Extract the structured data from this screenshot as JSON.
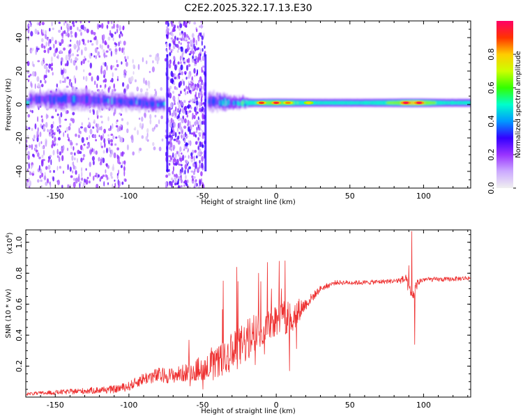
{
  "title": "C2E2.2025.322.17.13.E30",
  "colors": {
    "snr_line": "#ee3030",
    "axis": "#000000",
    "background": "#ffffff"
  },
  "chart_data": [
    {
      "type": "heatmap",
      "name": "spectrogram",
      "xlabel": "Height of straight line (km)",
      "ylabel": "Frequency (Hz)",
      "xlim": [
        -170,
        132
      ],
      "ylim": [
        -50,
        50
      ],
      "x_ticks": [
        -150,
        -100,
        -50,
        0,
        50,
        100
      ],
      "y_ticks": [
        -40,
        -20,
        0,
        20,
        40
      ],
      "colorbar": {
        "label": "Normalized spectral amplitude",
        "range": [
          0,
          1
        ],
        "ticks": [
          "0.0",
          "0.2",
          "0.4",
          "0.6",
          "0.8"
        ],
        "tick_values": [
          0,
          0.2,
          0.4,
          0.6,
          0.8
        ],
        "colormap": [
          "#f0f0f0",
          "#ccaaff",
          "#9933ff",
          "#3300ff",
          "#0099ff",
          "#00ffcc",
          "#33ff00",
          "#ccff00",
          "#ffcc00",
          "#ff3300",
          "#ff0066"
        ]
      },
      "scatter_segments": [
        {
          "x_range": [
            -170,
            -102
          ],
          "f_spread": 50,
          "density": "high",
          "amplitude": 0.15
        },
        {
          "x_range": [
            -102,
            -77
          ],
          "f_spread": 30,
          "density": "low",
          "amplitude": 0.08
        },
        {
          "x_range": [
            -75,
            -48
          ],
          "f_spread": 50,
          "density": "very-high",
          "amplitude": 0.18
        }
      ],
      "band": [
        {
          "x": -168,
          "center": 3,
          "halfwidth": 5,
          "peak": 0.35
        },
        {
          "x": -150,
          "center": 3,
          "halfwidth": 6,
          "peak": 0.4
        },
        {
          "x": -130,
          "center": 3,
          "halfwidth": 6,
          "peak": 0.38
        },
        {
          "x": -110,
          "center": 2,
          "halfwidth": 5,
          "peak": 0.4
        },
        {
          "x": -90,
          "center": 1,
          "halfwidth": 5,
          "peak": 0.42
        },
        {
          "x": -78,
          "center": 0,
          "halfwidth": 4,
          "peak": 0.45
        },
        {
          "x": -46,
          "center": 2,
          "halfwidth": 6,
          "peak": 0.4
        },
        {
          "x": -30,
          "center": 1,
          "halfwidth": 4,
          "peak": 0.48
        },
        {
          "x": -15,
          "center": 1,
          "halfwidth": 3,
          "peak": 0.65
        },
        {
          "x": 0,
          "center": 1,
          "halfwidth": 3,
          "peak": 0.8
        },
        {
          "x": 20,
          "center": 1,
          "halfwidth": 3,
          "peak": 0.58
        },
        {
          "x": 40,
          "center": 1,
          "halfwidth": 3,
          "peak": 0.55
        },
        {
          "x": 60,
          "center": 1,
          "halfwidth": 3,
          "peak": 0.56
        },
        {
          "x": 80,
          "center": 1,
          "halfwidth": 3,
          "peak": 0.7
        },
        {
          "x": 92,
          "center": 1,
          "halfwidth": 3,
          "peak": 0.92
        },
        {
          "x": 100,
          "center": 1,
          "halfwidth": 3,
          "peak": 0.8
        },
        {
          "x": 115,
          "center": 1,
          "halfwidth": 3,
          "peak": 0.55
        },
        {
          "x": 132,
          "center": 1,
          "halfwidth": 3,
          "peak": 0.55
        }
      ],
      "hotspots": [
        {
          "x": -10,
          "f": 1,
          "amp": 0.92
        },
        {
          "x": 0,
          "f": 1,
          "amp": 0.95
        },
        {
          "x": 8,
          "f": 1,
          "amp": 0.85
        },
        {
          "x": 22,
          "f": 1,
          "amp": 0.78
        },
        {
          "x": 88,
          "f": 1,
          "amp": 0.98
        },
        {
          "x": 97,
          "f": 1,
          "amp": 0.98
        }
      ]
    },
    {
      "type": "line",
      "name": "snr",
      "xlabel": "Height of straight line (km)",
      "ylabel": "SNR (10 * v/v)",
      "multiplier": "(x10",
      "multiplier_exp": "4",
      "xlim": [
        -170,
        132
      ],
      "ylim": [
        0,
        1.08
      ],
      "x_ticks": [
        -150,
        -100,
        -50,
        0,
        50,
        100
      ],
      "y_ticks": [
        0.2,
        0.4,
        0.6,
        0.8,
        1.0
      ],
      "y_tick_labels": [
        "0.2",
        "0.4",
        "0.6",
        "0.8",
        "1.0"
      ],
      "color": "#ee3030",
      "x": [
        -170,
        -150,
        -130,
        -110,
        -100,
        -90,
        -80,
        -70,
        -60,
        -50,
        -40,
        -30,
        -20,
        -10,
        0,
        10,
        20,
        30,
        40,
        60,
        80,
        88,
        92,
        96,
        100,
        115,
        132
      ],
      "y": [
        0.02,
        0.03,
        0.04,
        0.05,
        0.07,
        0.12,
        0.14,
        0.14,
        0.16,
        0.19,
        0.22,
        0.28,
        0.36,
        0.45,
        0.5,
        0.52,
        0.6,
        0.7,
        0.74,
        0.74,
        0.75,
        0.76,
        0.64,
        0.74,
        0.76,
        0.76,
        0.77
      ],
      "noise_amplitude": [
        0.01,
        0.015,
        0.02,
        0.025,
        0.03,
        0.04,
        0.05,
        0.05,
        0.06,
        0.08,
        0.1,
        0.13,
        0.14,
        0.12,
        0.1,
        0.12,
        0.04,
        0.02,
        0.015,
        0.015,
        0.015,
        0.03,
        0.05,
        0.03,
        0.015,
        0.015,
        0.015
      ],
      "spikes": [
        {
          "x": -36,
          "y": 0.75
        },
        {
          "x": -12,
          "y": 0.8
        },
        {
          "x": -6,
          "y": 0.87
        },
        {
          "x": 6,
          "y": 0.88
        },
        {
          "x": 9,
          "y": 0.17
        },
        {
          "x": 92,
          "y": 1.07
        },
        {
          "x": 94,
          "y": 0.34
        },
        {
          "x": 90,
          "y": 0.85
        }
      ]
    }
  ]
}
